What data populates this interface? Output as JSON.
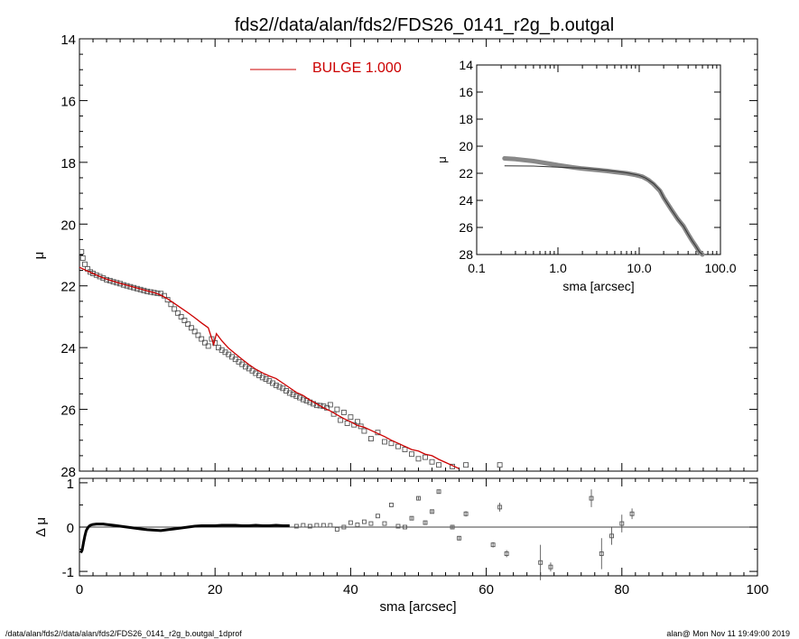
{
  "title": "fds2//data/alan/fds2/FDS26_0141_r2g_b.outgal",
  "footer": {
    "left": "/data/alan/fds2//data/alan/fds2/FDS26_0141_r2g_b.outgal_1dprof",
    "right": "alan@  Mon Nov 11 19:49:00 2019"
  },
  "legend": {
    "label": "BULGE  1.000"
  },
  "colors": {
    "model": "#cc0000",
    "data": "#555555",
    "axes": "#000000"
  },
  "chart_data": [
    {
      "type": "scatter",
      "panel": "main",
      "ylabel": "μ",
      "xlim": [
        0,
        100
      ],
      "ylim": [
        28,
        14
      ],
      "y_inverted": true,
      "yticks": [
        "14",
        "16",
        "18",
        "20",
        "22",
        "24",
        "26",
        "28"
      ],
      "series": [
        {
          "kind": "points",
          "x": [
            0.3,
            0.5,
            0.8,
            1.2,
            1.6,
            2.0,
            2.5,
            3.0,
            3.5,
            4,
            4.5,
            5,
            5.5,
            6,
            6.5,
            7,
            7.5,
            8,
            8.5,
            9,
            9.5,
            10,
            10.5,
            11,
            11.5,
            12,
            12.5,
            13,
            13.5,
            14,
            14.5,
            15,
            15.5,
            16,
            16.5,
            17,
            17.5,
            18,
            18.5,
            19,
            19.5,
            20,
            20.5,
            21,
            21.5,
            22,
            22.5,
            23,
            23.5,
            24,
            24.5,
            25,
            25.5,
            26,
            26.5,
            27,
            27.5,
            28,
            28.5,
            29,
            29.5,
            30,
            30.5,
            31,
            31.5,
            32,
            32.5,
            33,
            33.5,
            34,
            34.5,
            35,
            35.5,
            36,
            36.5,
            37,
            37.5,
            38,
            38.5,
            39,
            39.5,
            40,
            40.5,
            41,
            41.5,
            42,
            43,
            44,
            45,
            46,
            47,
            48,
            49,
            50,
            51,
            52,
            53,
            55,
            57,
            62
          ],
          "y": [
            20.9,
            21.1,
            21.3,
            21.45,
            21.55,
            21.6,
            21.65,
            21.7,
            21.75,
            21.8,
            21.83,
            21.87,
            21.9,
            21.93,
            21.97,
            22.0,
            22.03,
            22.06,
            22.09,
            22.12,
            22.15,
            22.18,
            22.2,
            22.22,
            22.24,
            22.25,
            22.32,
            22.45,
            22.6,
            22.75,
            22.88,
            23.0,
            23.12,
            23.24,
            23.36,
            23.48,
            23.6,
            23.72,
            23.84,
            23.95,
            23.72,
            23.85,
            24.0,
            24.08,
            24.15,
            24.22,
            24.3,
            24.38,
            24.46,
            24.54,
            24.62,
            24.68,
            24.75,
            24.83,
            24.9,
            24.97,
            25.02,
            25.08,
            25.15,
            25.22,
            25.27,
            25.32,
            25.4,
            25.47,
            25.52,
            25.57,
            25.62,
            25.68,
            25.72,
            25.77,
            25.82,
            25.87,
            25.88,
            25.9,
            25.95,
            25.85,
            26.15,
            26.0,
            26.35,
            26.1,
            26.45,
            26.25,
            26.5,
            26.4,
            26.55,
            26.7,
            26.95,
            26.75,
            27.05,
            27.1,
            27.2,
            27.3,
            27.45,
            27.6,
            27.55,
            27.7,
            27.8,
            27.85,
            27.8,
            27.8
          ]
        },
        {
          "kind": "model-line",
          "name": "BULGE  1.000",
          "x": [
            0,
            1,
            2,
            3,
            4,
            5,
            6,
            7,
            8,
            9,
            10,
            11,
            12,
            13,
            14,
            15,
            16,
            17,
            18,
            19,
            19.8,
            20.2,
            21,
            22,
            23,
            24,
            25,
            26,
            27,
            28,
            29,
            30,
            31,
            32,
            33,
            34,
            35,
            36,
            37,
            38,
            39,
            40,
            41,
            42,
            43,
            44,
            45,
            46,
            47,
            48,
            49,
            50,
            51,
            52,
            53,
            54,
            55,
            56
          ],
          "y": [
            21.4,
            21.5,
            21.6,
            21.7,
            21.78,
            21.85,
            21.92,
            21.98,
            22.04,
            22.1,
            22.16,
            22.22,
            22.3,
            22.42,
            22.57,
            22.72,
            22.87,
            23.03,
            23.2,
            23.36,
            23.9,
            23.55,
            23.78,
            24.02,
            24.2,
            24.38,
            24.55,
            24.7,
            24.82,
            24.92,
            25.0,
            25.15,
            25.3,
            25.45,
            25.55,
            25.7,
            25.82,
            25.95,
            26.05,
            26.18,
            26.3,
            26.4,
            26.52,
            26.58,
            26.68,
            26.78,
            26.88,
            27.0,
            27.1,
            27.2,
            27.3,
            27.35,
            27.45,
            27.5,
            27.62,
            27.72,
            27.82,
            27.92
          ]
        }
      ]
    },
    {
      "type": "scatter",
      "panel": "residual",
      "xlabel": "sma [arcsec]",
      "ylabel": "Δ μ",
      "xlim": [
        0,
        100
      ],
      "ylim": [
        -1.1,
        1.1
      ],
      "xticks": [
        "0",
        "20",
        "40",
        "60",
        "80",
        "100"
      ],
      "yticks": [
        "1",
        "0",
        "-1"
      ],
      "series": [
        {
          "kind": "points",
          "x": [
            32,
            33,
            34,
            35,
            36,
            37,
            38,
            39,
            40,
            41,
            42,
            43,
            44,
            45,
            46,
            47,
            48,
            49,
            50,
            51,
            52,
            53,
            55,
            56,
            57,
            61,
            62,
            63,
            68,
            69.5,
            75.5,
            77,
            78.5,
            80,
            81.5
          ],
          "y": [
            0.02,
            0.04,
            0.02,
            0.04,
            0.04,
            0.04,
            -0.05,
            0.0,
            0.1,
            0.05,
            0.12,
            0.08,
            0.25,
            0.08,
            0.5,
            0.02,
            0.0,
            0.2,
            0.65,
            0.1,
            0.35,
            0.8,
            0.0,
            -0.25,
            0.3,
            -0.4,
            0.45,
            -0.6,
            -0.8,
            -0.9,
            0.65,
            -0.6,
            -0.2,
            0.08,
            0.3
          ],
          "errors": [
            0.02,
            0.02,
            0.02,
            0.02,
            0.02,
            0.02,
            0.03,
            0.03,
            0.03,
            0.03,
            0.03,
            0.03,
            0.03,
            0.03,
            0.03,
            0.03,
            0.03,
            0.04,
            0.04,
            0.04,
            0.04,
            0.04,
            0.05,
            0.05,
            0.06,
            0.06,
            0.1,
            0.08,
            0.4,
            0.1,
            0.2,
            0.35,
            0.2,
            0.2,
            0.12
          ]
        },
        {
          "kind": "residual-curve",
          "x": [
            0.2,
            0.4,
            0.6,
            0.8,
            1.0,
            1.3,
            1.6,
            2.0,
            2.5,
            3,
            3.5,
            4,
            5,
            6,
            7,
            8,
            9,
            10,
            11,
            12,
            13,
            14,
            15,
            16,
            17,
            18,
            19,
            20,
            21,
            22,
            23,
            24,
            25,
            26,
            27,
            28,
            29,
            30,
            31
          ],
          "y": [
            -0.58,
            -0.52,
            -0.35,
            -0.2,
            -0.08,
            0.0,
            0.04,
            0.06,
            0.07,
            0.07,
            0.07,
            0.06,
            0.04,
            0.02,
            0.0,
            -0.02,
            -0.04,
            -0.06,
            -0.07,
            -0.08,
            -0.06,
            -0.04,
            -0.02,
            0.0,
            0.02,
            0.03,
            0.03,
            0.03,
            0.04,
            0.04,
            0.04,
            0.03,
            0.03,
            0.04,
            0.03,
            0.03,
            0.04,
            0.03,
            0.03
          ]
        }
      ]
    },
    {
      "type": "line",
      "panel": "inset",
      "xlabel": "sma [arcsec]",
      "ylabel": "μ",
      "x_scale": "log",
      "xlim": [
        0.1,
        100
      ],
      "ylim": [
        28,
        14
      ],
      "xticks": [
        "0.1",
        "1.0",
        "10.0",
        "100.0"
      ],
      "yticks": [
        "14",
        "16",
        "18",
        "20",
        "22",
        "24",
        "26",
        "28"
      ],
      "series": [
        {
          "kind": "data-curve",
          "x": [
            0.22,
            0.3,
            0.5,
            0.8,
            1.0,
            1.5,
            2,
            3,
            4,
            5,
            7,
            9,
            11,
            13,
            15,
            18,
            20,
            25,
            30,
            35,
            40,
            45,
            50,
            55,
            60
          ],
          "y": [
            20.9,
            20.95,
            21.1,
            21.3,
            21.4,
            21.55,
            21.65,
            21.75,
            21.83,
            21.9,
            22.0,
            22.12,
            22.25,
            22.5,
            22.8,
            23.3,
            23.8,
            24.7,
            25.4,
            25.9,
            26.5,
            27.0,
            27.4,
            27.8,
            28.0
          ]
        },
        {
          "kind": "model-line",
          "x": [
            0.22,
            0.5,
            1,
            2,
            3,
            5,
            7,
            10,
            12,
            15,
            18,
            20,
            25,
            30,
            35,
            40,
            45,
            50,
            55,
            60
          ],
          "y": [
            21.45,
            21.47,
            21.55,
            21.62,
            21.72,
            21.85,
            21.97,
            22.15,
            22.35,
            22.75,
            23.25,
            23.8,
            24.7,
            25.4,
            25.9,
            26.5,
            27.0,
            27.4,
            27.8,
            28.0
          ]
        }
      ]
    }
  ]
}
